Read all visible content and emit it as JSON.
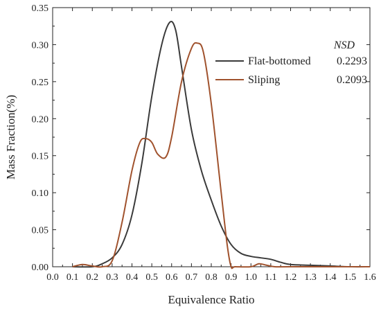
{
  "chart_data": {
    "type": "line",
    "title": "",
    "xlabel": "Equivalence Ratio",
    "ylabel": "Mass Fraction(%)",
    "xlim": [
      0.0,
      1.6
    ],
    "ylim": [
      0.0,
      0.35
    ],
    "xticks": [
      "0.0",
      "0.1",
      "0.2",
      "0.3",
      "0.4",
      "0.5",
      "0.6",
      "0.7",
      "0.8",
      "0.9",
      "1.0",
      "1.1",
      "1.2",
      "1.3",
      "1.4",
      "1.5",
      "1.6"
    ],
    "yticks": [
      "0.00",
      "0.05",
      "0.10",
      "0.15",
      "0.20",
      "0.25",
      "0.30",
      "0.35"
    ],
    "grid": false,
    "legend_position": "top-right",
    "legend_title": "NSD",
    "series": [
      {
        "name": "Flat-bottomed",
        "nsd": "0.2293",
        "color": "#3a3a3a",
        "x": [
          0.1,
          0.2,
          0.25,
          0.3,
          0.35,
          0.4,
          0.45,
          0.5,
          0.55,
          0.59,
          0.62,
          0.65,
          0.7,
          0.75,
          0.8,
          0.85,
          0.9,
          0.95,
          1.0,
          1.05,
          1.1,
          1.15,
          1.2,
          1.3,
          1.4,
          1.5,
          1.6
        ],
        "y": [
          0.0,
          0.0,
          0.004,
          0.012,
          0.03,
          0.07,
          0.14,
          0.23,
          0.3,
          0.33,
          0.32,
          0.27,
          0.185,
          0.13,
          0.09,
          0.055,
          0.03,
          0.018,
          0.014,
          0.012,
          0.01,
          0.006,
          0.003,
          0.002,
          0.001,
          0.0,
          0.0
        ]
      },
      {
        "name": "Sliping",
        "nsd": "0.2093",
        "color": "#a0522d",
        "x": [
          0.1,
          0.15,
          0.2,
          0.25,
          0.3,
          0.35,
          0.4,
          0.44,
          0.47,
          0.5,
          0.53,
          0.57,
          0.6,
          0.65,
          0.7,
          0.73,
          0.76,
          0.8,
          0.85,
          0.88,
          0.9,
          0.92,
          1.0,
          1.04,
          1.08,
          1.12,
          1.2,
          1.6
        ],
        "y": [
          0.0,
          0.003,
          0.001,
          0.0,
          0.008,
          0.06,
          0.13,
          0.168,
          0.173,
          0.168,
          0.152,
          0.148,
          0.175,
          0.25,
          0.295,
          0.302,
          0.29,
          0.22,
          0.1,
          0.03,
          0.0,
          0.0,
          0.0,
          0.004,
          0.002,
          0.0,
          0.0,
          0.0
        ]
      }
    ]
  }
}
